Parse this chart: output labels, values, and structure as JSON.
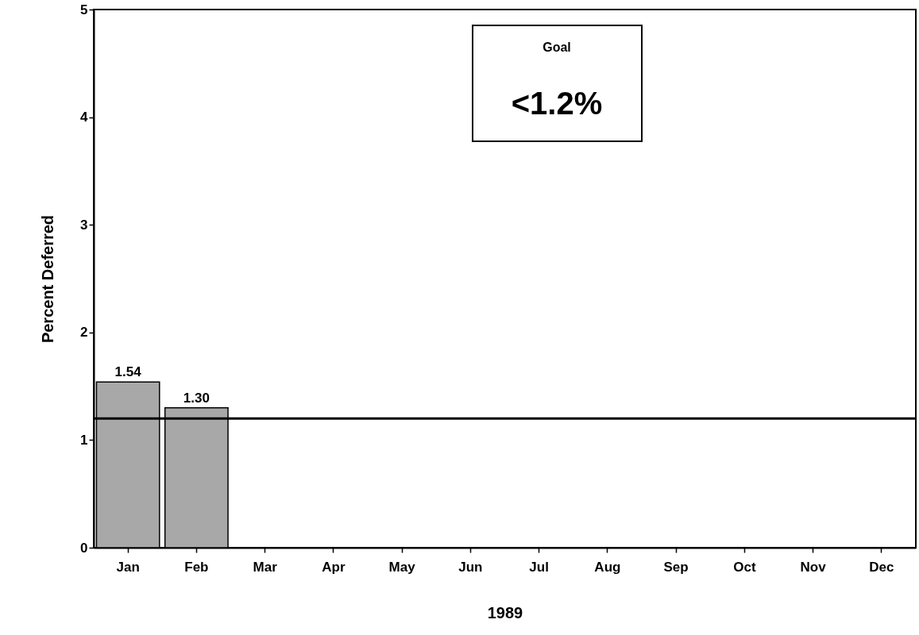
{
  "chart_data": {
    "type": "bar",
    "xlabel": "1989",
    "ylabel": "Percent Deferred",
    "categories": [
      "Jan",
      "Feb",
      "Mar",
      "Apr",
      "May",
      "Jun",
      "Jul",
      "Aug",
      "Sep",
      "Oct",
      "Nov",
      "Dec"
    ],
    "values": [
      1.54,
      1.3,
      null,
      null,
      null,
      null,
      null,
      null,
      null,
      null,
      null,
      null
    ],
    "value_labels": [
      "1.54",
      "1.30",
      null,
      null,
      null,
      null,
      null,
      null,
      null,
      null,
      null,
      null
    ],
    "color": "#a8a8a8",
    "ylim": [
      0,
      5
    ],
    "yticks": [
      0,
      1,
      2,
      3,
      4,
      5
    ],
    "grid": false,
    "ref_lines": [
      {
        "axis": "y",
        "value": 1.2,
        "color": "#000000"
      }
    ],
    "annotations": [
      "Goal",
      "<1.2%"
    ]
  }
}
